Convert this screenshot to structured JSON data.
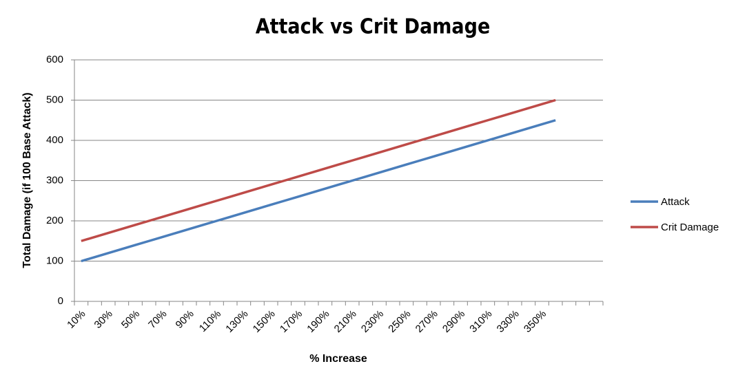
{
  "chart_data": {
    "type": "line",
    "title": "Attack vs Crit Damage",
    "x_label": "% Increase",
    "y_label": "Total Damage (if 100 Base Attack)",
    "categories": [
      "10%",
      null,
      "30%",
      null,
      "50%",
      null,
      "70%",
      null,
      "90%",
      null,
      "110%",
      null,
      "130%",
      null,
      "150%",
      null,
      "170%",
      null,
      "190%",
      null,
      "210%",
      null,
      "230%",
      null,
      "250%",
      null,
      "270%",
      null,
      "290%",
      null,
      "310%",
      null,
      "330%",
      null,
      "350%",
      null,
      null,
      null,
      null
    ],
    "series": [
      {
        "name": "Attack",
        "color": "#4a7ebb",
        "values": [
          100,
          110,
          120,
          130,
          140,
          150,
          160,
          170,
          180,
          190,
          200,
          210,
          220,
          230,
          240,
          250,
          260,
          270,
          280,
          290,
          300,
          310,
          320,
          330,
          340,
          350,
          360,
          370,
          380,
          390,
          400,
          410,
          420,
          430,
          440,
          450,
          null,
          null,
          null
        ]
      },
      {
        "name": "Crit Damage",
        "color": "#be4b48",
        "values": [
          150,
          160,
          170,
          180,
          190,
          200,
          210,
          220,
          230,
          240,
          250,
          260,
          270,
          280,
          290,
          300,
          310,
          320,
          330,
          340,
          350,
          360,
          370,
          380,
          390,
          400,
          410,
          420,
          430,
          440,
          450,
          460,
          470,
          480,
          490,
          500,
          null,
          null,
          null
        ]
      }
    ],
    "ylim": [
      0,
      600
    ],
    "yticks": [
      0,
      100,
      200,
      300,
      400,
      500,
      600
    ],
    "grid": true,
    "legend": "right"
  }
}
